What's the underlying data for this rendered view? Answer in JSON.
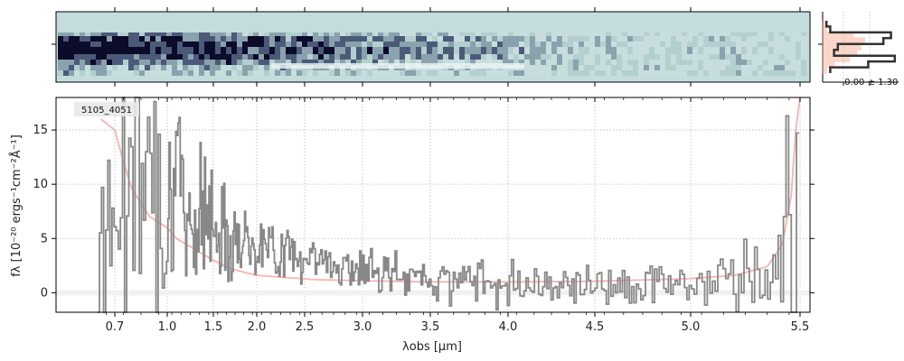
{
  "chart_data": [
    {
      "type": "heatmap",
      "panel": "2d-spectrum",
      "colors": {
        "background": "#c5dcdc",
        "dark": "#0b0b2a",
        "light": "#ffffff"
      }
    },
    {
      "type": "line",
      "panel": "spatial-profile",
      "label": "-0.00 ± 1.30",
      "colors": {
        "data": "#333333",
        "model": "#f4a58a"
      },
      "profile_data": [
        0.05,
        0.1,
        0.9,
        0.8,
        0.2,
        0.15,
        0.95,
        0.6,
        0.1
      ],
      "profile_model": [
        0.02,
        0.05,
        0.4,
        0.55,
        0.5,
        0.45,
        0.35,
        0.15,
        0.05
      ]
    },
    {
      "type": "line",
      "panel": "1d-spectrum",
      "object_label": "5105_4051",
      "xlabel": "λobs [μm]",
      "ylabel": "fλ [10⁻²⁰ ergs⁻¹cm⁻²Å⁻¹]",
      "ylim": [
        -1.8,
        18
      ],
      "yticks": [
        0,
        5,
        10,
        15
      ],
      "xticks": [
        "0.7",
        "1.0",
        "1.5",
        "2.0",
        "2.5",
        "3.0",
        "3.5",
        "4.0",
        "4.5",
        "5.0",
        "5.5"
      ],
      "grid": true,
      "series": [
        {
          "role": "flux",
          "color": "#888888",
          "x": [
            0.62,
            0.7,
            0.8,
            0.9,
            1.0,
            1.2,
            1.4,
            1.6,
            1.8,
            2.0,
            2.2,
            2.4,
            2.6,
            2.8,
            3.0,
            3.2,
            3.4,
            3.6,
            3.8,
            4.0,
            4.2,
            4.4,
            4.6,
            4.8,
            5.0,
            5.2,
            5.4,
            5.5
          ],
          "y": [
            8,
            10,
            11,
            12,
            10,
            8,
            7,
            6,
            5,
            4.5,
            4,
            3.5,
            3,
            2.5,
            2,
            1.6,
            1.4,
            1.2,
            1.2,
            1.0,
            0.9,
            0.9,
            0.8,
            0.8,
            0.9,
            1.0,
            2.0,
            5.0
          ]
        },
        {
          "role": "uncertainty",
          "color": "#f8b4b0",
          "x": [
            0.62,
            0.7,
            0.75,
            0.8,
            0.9,
            1.0,
            1.1,
            1.3,
            1.5,
            1.7,
            1.9,
            2.0,
            2.3,
            2.6,
            3.0,
            3.5,
            4.0,
            4.5,
            5.0,
            5.2,
            5.35,
            5.42,
            5.46,
            5.48,
            5.5
          ],
          "y": [
            16,
            15,
            12,
            9.5,
            7,
            6,
            5,
            4,
            3,
            2.2,
            1.8,
            1.6,
            1.4,
            1.2,
            1.1,
            1.0,
            1.0,
            1.05,
            1.3,
            1.6,
            2.4,
            4.5,
            9,
            15,
            18
          ]
        }
      ]
    }
  ]
}
